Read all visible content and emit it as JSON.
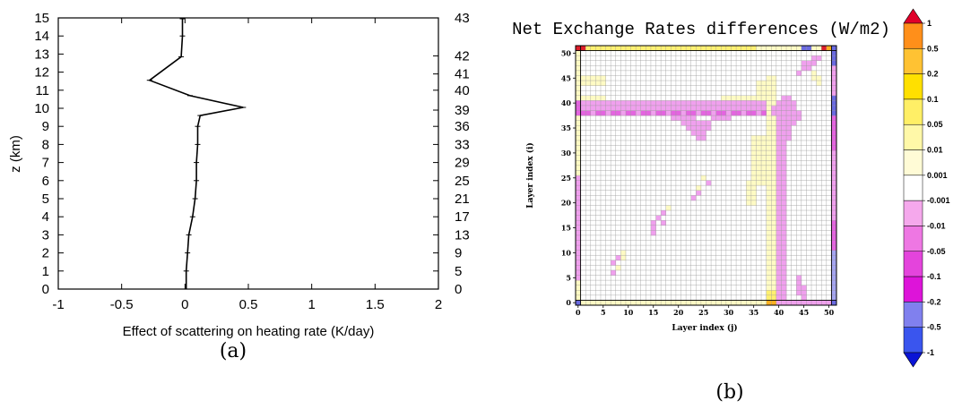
{
  "chart_data": [
    {
      "type": "line",
      "xlabel": "Effect of scattering on heating rate (K/day)",
      "ylabel": "z (km)",
      "subfigure_label": "(a)",
      "xlim": [
        -1,
        2
      ],
      "ylim": [
        0,
        15
      ],
      "x_ticks": [
        "-1",
        "-0.5",
        "0",
        "0.5",
        "1",
        "1.5",
        "2"
      ],
      "y_ticks": [
        "0",
        "1",
        "2",
        "3",
        "4",
        "5",
        "6",
        "7",
        "8",
        "9",
        "10",
        "11",
        "12",
        "13",
        "14",
        "15"
      ],
      "right_axis_ticks": [
        {
          "z": 0,
          "label": "0"
        },
        {
          "z": 1,
          "label": "5"
        },
        {
          "z": 2,
          "label": "9"
        },
        {
          "z": 3,
          "label": "13"
        },
        {
          "z": 4,
          "label": "17"
        },
        {
          "z": 5,
          "label": "21"
        },
        {
          "z": 6,
          "label": "25"
        },
        {
          "z": 7,
          "label": "29"
        },
        {
          "z": 8,
          "label": "33"
        },
        {
          "z": 9,
          "label": "36"
        },
        {
          "z": 9.9,
          "label": "39"
        },
        {
          "z": 11,
          "label": "40"
        },
        {
          "z": 11.9,
          "label": "41"
        },
        {
          "z": 12.9,
          "label": "42"
        },
        {
          "z": 15,
          "label": "43"
        }
      ],
      "grid": false,
      "series": [
        {
          "x": [
            0.01,
            0.01,
            0.02,
            0.03,
            0.06,
            0.08,
            0.09,
            0.09,
            0.1,
            0.1,
            0.12,
            0.46,
            0.04,
            -0.28,
            -0.03,
            -0.02,
            -0.02
          ],
          "y": [
            0,
            1,
            2,
            3,
            4,
            5,
            6,
            7,
            8,
            9,
            9.6,
            10.05,
            10.7,
            11.55,
            12.85,
            14.0,
            14.95
          ]
        }
      ]
    },
    {
      "type": "heatmap",
      "title": "Net Exchange Rates differences (W/m2)",
      "xlabel": "Layer index (j)",
      "ylabel": "Layer index (i)",
      "subfigure_label": "(b)",
      "xlim": [
        0,
        51
      ],
      "ylim": [
        0,
        51
      ],
      "x_ticks": [
        "0",
        "5",
        "10",
        "15",
        "20",
        "25",
        "30",
        "35",
        "40",
        "45",
        "50"
      ],
      "y_ticks": [
        "0",
        "5",
        "10",
        "15",
        "20",
        "25",
        "30",
        "35",
        "40",
        "45",
        "50"
      ],
      "grid": true,
      "colorbar": {
        "labels": [
          "1",
          "0.5",
          "0.2",
          "0.1",
          "0.05",
          "0.01",
          "0.001",
          "-0.001",
          "-0.01",
          "-0.05",
          "-0.1",
          "-0.2",
          "-0.5",
          "-1"
        ],
        "colors": [
          "#e0002a",
          "#ff8f1a",
          "#ffc233",
          "#ffe000",
          "#ffef66",
          "#fff8a8",
          "#fffbd6",
          "#ffffff",
          "#f5a8ec",
          "#ee77e3",
          "#e444dc",
          "#dd14d9",
          "#8080ee",
          "#3a55ee",
          "#0a14d6"
        ]
      },
      "colors": {
        "pink": "#f0a0ee",
        "magenta": "#e464e0",
        "lightyellow": "#fffbc4",
        "yellow": "#fff070",
        "orange": "#ffb020",
        "blue": "#6a6ae0",
        "red": "#dd1e2a"
      }
    }
  ]
}
